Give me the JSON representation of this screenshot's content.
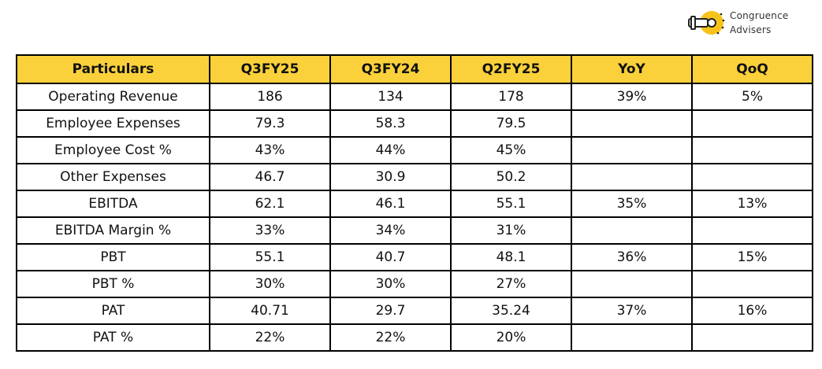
{
  "logo": {
    "line1": "Congruence",
    "line2": "Advisers",
    "icon": "key-icon",
    "accent_color": "#f7c31b"
  },
  "header_color": "#fbd13b",
  "chart_data": {
    "type": "table",
    "columns": [
      "Particulars",
      "Q3FY25",
      "Q3FY24",
      "Q2FY25",
      "YoY",
      "QoQ"
    ],
    "rows": [
      [
        "Operating Revenue",
        "186",
        "134",
        "178",
        "39%",
        "5%"
      ],
      [
        "Employee Expenses",
        "79.3",
        "58.3",
        "79.5",
        "",
        ""
      ],
      [
        "Employee Cost %",
        "43%",
        "44%",
        "45%",
        "",
        ""
      ],
      [
        "Other Expenses",
        "46.7",
        "30.9",
        "50.2",
        "",
        ""
      ],
      [
        "EBITDA",
        "62.1",
        "46.1",
        "55.1",
        "35%",
        "13%"
      ],
      [
        "EBITDA Margin %",
        "33%",
        "34%",
        "31%",
        "",
        ""
      ],
      [
        "PBT",
        "55.1",
        "40.7",
        "48.1",
        "36%",
        "15%"
      ],
      [
        "PBT %",
        "30%",
        "30%",
        "27%",
        "",
        ""
      ],
      [
        "PAT",
        "40.71",
        "29.7",
        "35.24",
        "37%",
        "16%"
      ],
      [
        "PAT %",
        "22%",
        "22%",
        "20%",
        "",
        ""
      ]
    ]
  }
}
